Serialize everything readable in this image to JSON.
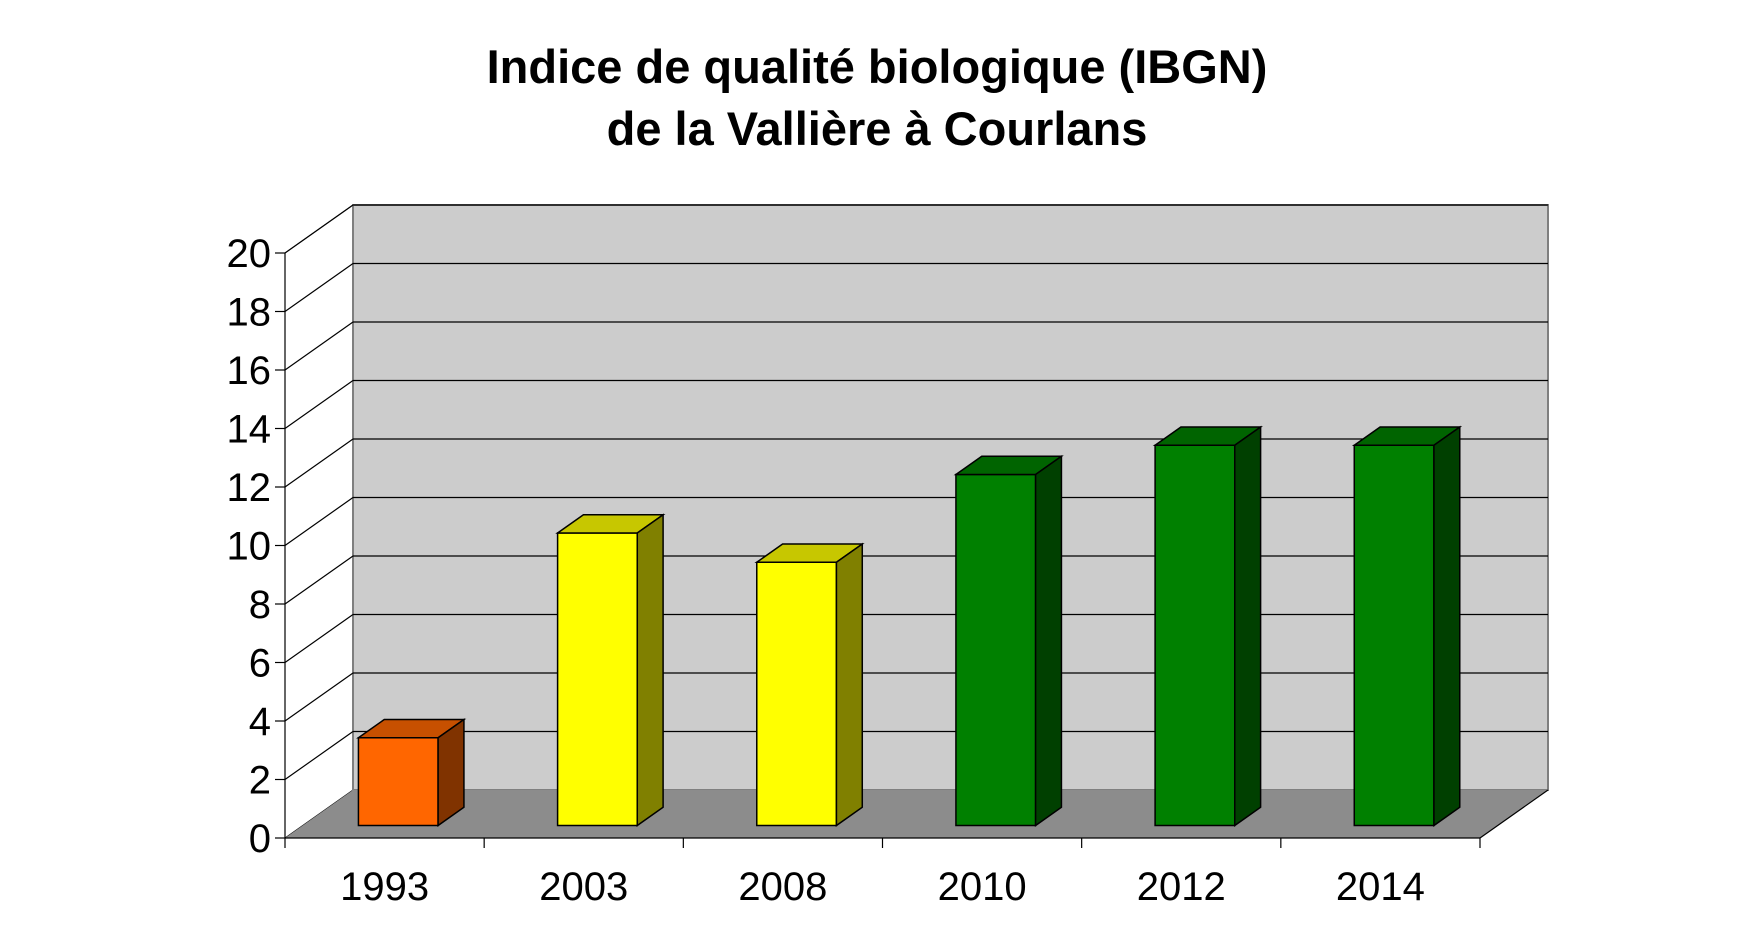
{
  "chart_data": {
    "type": "bar",
    "title": [
      "Indice de qualité biologique (IBGN)",
      "de la Vallière à Courlans"
    ],
    "xlabel": "",
    "ylabel": "",
    "categories": [
      "1993",
      "2003",
      "2008",
      "2010",
      "2012",
      "2014"
    ],
    "values": [
      3,
      10,
      9,
      12,
      13,
      13
    ],
    "ylim": [
      0,
      20
    ],
    "yticks": [
      0,
      2,
      4,
      6,
      8,
      10,
      12,
      14,
      16,
      18,
      20
    ],
    "grid": true,
    "legend": "none",
    "style": "3d",
    "bar_colors": [
      "#ff6600",
      "#ffff00",
      "#ffff00",
      "#008000",
      "#008000",
      "#008000"
    ],
    "colors": {
      "wall": "#cccccc",
      "floor": "#8c8c8c",
      "grid": "#000000"
    }
  }
}
